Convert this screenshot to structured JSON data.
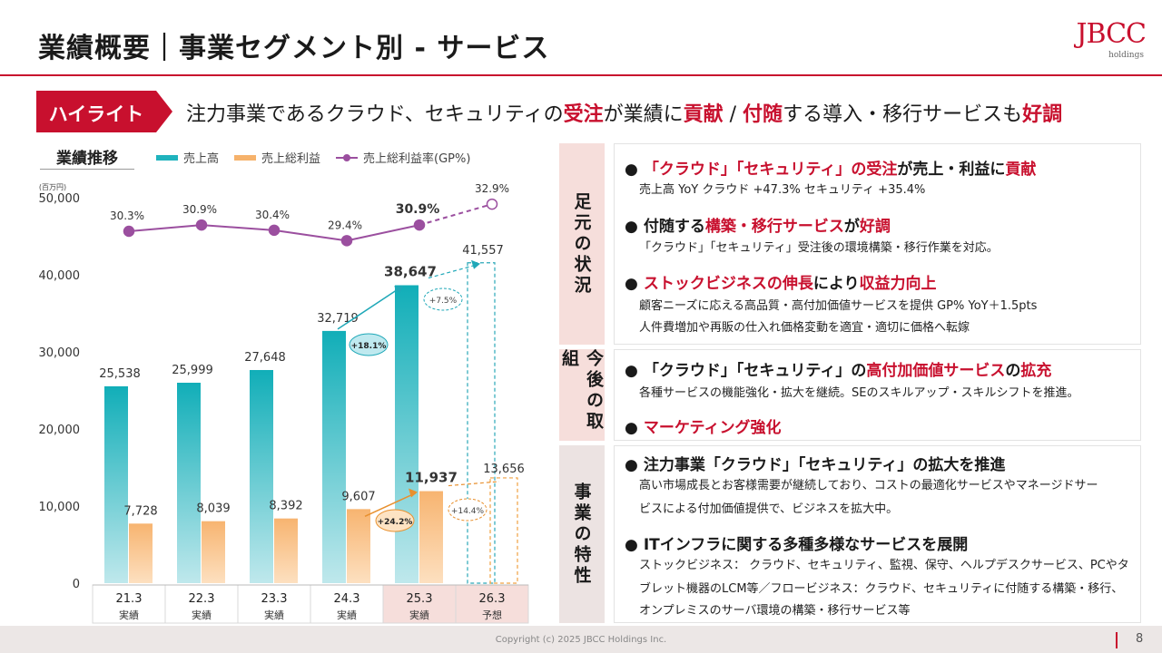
{
  "header": {
    "title": "業績概要｜事業セグメント別 - サービス",
    "logo_main": "JBCC",
    "logo_sub": "holdings"
  },
  "highlight": {
    "badge": "ハイライト",
    "parts": [
      {
        "t": "注力事業であるクラウド、セキュリティの",
        "r": false
      },
      {
        "t": "受注",
        "r": true
      },
      {
        "t": "が業績に",
        "r": false
      },
      {
        "t": "貢献",
        "r": true
      },
      {
        "t": " / ",
        "r": false
      },
      {
        "t": "付随",
        "r": true
      },
      {
        "t": "する導入・移行サービスも",
        "r": false
      },
      {
        "t": "好調",
        "r": true
      }
    ]
  },
  "chart_title": "業績推移",
  "legend": {
    "sales": "売上高",
    "gross": "売上総利益",
    "gp_rate": "売上総利益率(GP%)"
  },
  "colors": {
    "accent": "#c8102e",
    "sales": "#1fb3bd",
    "gross": "#f6b26b",
    "gp_line": "#9b4f9f"
  },
  "chart_data": {
    "type": "bar",
    "unit": "(百万円)",
    "categories": [
      "21.3",
      "22.3",
      "23.3",
      "24.3",
      "25.3",
      "26.3"
    ],
    "category_sub": [
      "実績",
      "実績",
      "実績",
      "実績",
      "実績",
      "予想"
    ],
    "ylim": [
      0,
      50000
    ],
    "yticks": [
      "0",
      "10,000",
      "20,000",
      "30,000",
      "40,000",
      "50,000"
    ],
    "series": [
      {
        "name": "売上高",
        "values": [
          25538,
          25999,
          27648,
          32719,
          38647,
          41557
        ],
        "labels": [
          "25,538",
          "25,999",
          "27,648",
          "32,719",
          "38,647",
          "41,557"
        ]
      },
      {
        "name": "売上総利益",
        "values": [
          7728,
          8039,
          8392,
          9607,
          11937,
          13656
        ],
        "labels": [
          "7,728",
          "8,039",
          "8,392",
          "9,607",
          "11,937",
          "13,656"
        ]
      },
      {
        "name": "売上総利益率(GP%)",
        "values": [
          30.3,
          30.9,
          30.4,
          29.4,
          30.9,
          32.9
        ],
        "labels": [
          "30.3%",
          "30.9%",
          "30.4%",
          "29.4%",
          "30.9%",
          "32.9%"
        ]
      }
    ],
    "annotations": {
      "sales_growth": "+18.1%",
      "sales_forecast_growth": "+7.5%",
      "gross_growth": "+24.2%",
      "gross_forecast_growth": "+14.4%"
    }
  },
  "panels": {
    "current": {
      "label": "足元の状況",
      "items": [
        {
          "parts": [
            {
              "t": "「クラウド」「セキュリティ」の受注",
              "r": true
            },
            {
              "t": "が売上・利益に",
              "r": false
            },
            {
              "t": "貢献",
              "r": true
            }
          ],
          "lines": [
            "売上高 YoY クラウド +47.3% セキュリティ +35.4%"
          ]
        },
        {
          "parts": [
            {
              "t": "付随する",
              "r": false
            },
            {
              "t": "構築・移行サービス",
              "r": true
            },
            {
              "t": "が",
              "r": false
            },
            {
              "t": "好調",
              "r": true
            }
          ],
          "lines": [
            "「クラウド」「セキュリティ」受注後の環境構築・移行作業を対応。"
          ]
        },
        {
          "parts": [
            {
              "t": "ストックビジネスの伸長",
              "r": true
            },
            {
              "t": "により",
              "r": false
            },
            {
              "t": "収益力向上",
              "r": true
            }
          ],
          "lines": [
            "顧客ニーズに応える高品質・高付加価値サービスを提供 GP% YoY＋1.5pts",
            "人件費増加や再販の仕入れ価格変動を適宜・適切に価格へ転嫁"
          ]
        }
      ]
    },
    "future": {
      "label": "今後の取組",
      "items": [
        {
          "parts": [
            {
              "t": "「クラウド」「セキュリティ」の",
              "r": false
            },
            {
              "t": "高付加価値サービス",
              "r": true
            },
            {
              "t": "の",
              "r": false
            },
            {
              "t": "拡充",
              "r": true
            }
          ],
          "lines": [
            "各種サービスの機能強化・拡大を継続。SEのスキルアップ・スキルシフトを推進。"
          ]
        },
        {
          "parts": [
            {
              "t": "マーケティング強化",
              "r": true
            }
          ],
          "lines": []
        }
      ]
    },
    "features": {
      "label": "事業の特性",
      "items": [
        {
          "parts": [
            {
              "t": "注力事業「クラウド」「セキュリティ」の拡大を推進",
              "r": false
            }
          ],
          "lines": [
            "高い市場成長とお客様需要が継続しており、コストの最適化サービスやマネージドサー",
            "ビスによる付加価値提供で、ビジネスを拡大中。"
          ]
        },
        {
          "parts": [
            {
              "t": "ITインフラに関する多種多様なサービスを展開",
              "r": false
            }
          ],
          "lines": [
            "ストックビジネス： クラウド、セキュリティ、監視、保守、ヘルプデスクサービス、PCやタ",
            "ブレット機器のLCM等／フロービジネス：クラウド、セキュリティに付随する構築・移行、",
            "オンプレミスのサーバ環境の構築・移行サービス等"
          ]
        }
      ]
    }
  },
  "footer": {
    "copyright": "Copyright (c) 2025 JBCC Holdings Inc.",
    "page": "8"
  }
}
